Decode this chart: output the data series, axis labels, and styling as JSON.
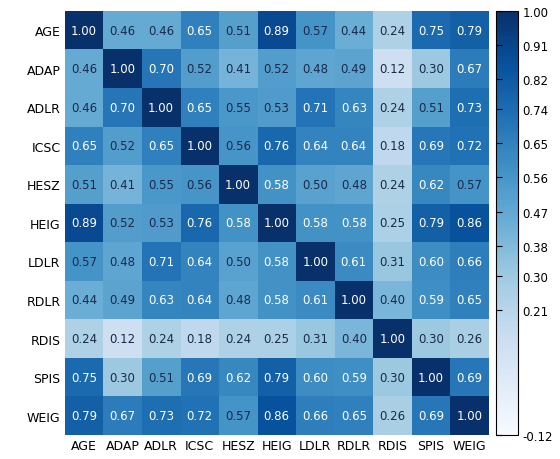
{
  "labels": [
    "AGE",
    "ADAP",
    "ADLR",
    "ICSC",
    "HESZ",
    "HEIG",
    "LDLR",
    "RDLR",
    "RDIS",
    "SPIS",
    "WEIG"
  ],
  "matrix": [
    [
      1.0,
      0.46,
      0.46,
      0.65,
      0.51,
      0.89,
      0.57,
      0.44,
      0.24,
      0.75,
      0.79
    ],
    [
      0.46,
      1.0,
      0.7,
      0.52,
      0.41,
      0.52,
      0.48,
      0.49,
      0.12,
      0.3,
      0.67
    ],
    [
      0.46,
      0.7,
      1.0,
      0.65,
      0.55,
      0.53,
      0.71,
      0.63,
      0.24,
      0.51,
      0.73
    ],
    [
      0.65,
      0.52,
      0.65,
      1.0,
      0.56,
      0.76,
      0.64,
      0.64,
      0.18,
      0.69,
      0.72
    ],
    [
      0.51,
      0.41,
      0.55,
      0.56,
      1.0,
      0.58,
      0.5,
      0.48,
      0.24,
      0.62,
      0.57
    ],
    [
      0.89,
      0.52,
      0.53,
      0.76,
      0.58,
      1.0,
      0.58,
      0.58,
      0.25,
      0.79,
      0.86
    ],
    [
      0.57,
      0.48,
      0.71,
      0.64,
      0.5,
      0.58,
      1.0,
      0.61,
      0.31,
      0.6,
      0.66
    ],
    [
      0.44,
      0.49,
      0.63,
      0.64,
      0.48,
      0.58,
      0.61,
      1.0,
      0.4,
      0.59,
      0.65
    ],
    [
      0.24,
      0.12,
      0.24,
      0.18,
      0.24,
      0.25,
      0.31,
      0.4,
      1.0,
      0.3,
      0.26
    ],
    [
      0.75,
      0.3,
      0.51,
      0.69,
      0.62,
      0.79,
      0.6,
      0.59,
      0.3,
      1.0,
      0.69
    ],
    [
      0.79,
      0.67,
      0.73,
      0.72,
      0.57,
      0.86,
      0.66,
      0.65,
      0.26,
      0.69,
      1.0
    ]
  ],
  "vmin": -0.12,
  "vmax": 1.0,
  "colorbar_ticks": [
    1.0,
    0.91,
    0.82,
    0.74,
    0.65,
    0.56,
    0.47,
    0.38,
    0.3,
    0.21,
    -0.12
  ],
  "colorbar_ticklabels": [
    "1.00",
    "0.91",
    "0.82",
    "0.74",
    "0.65",
    "0.56",
    "0.47",
    "0.38",
    "0.30",
    "0.21",
    "-0.12"
  ],
  "text_color_threshold": 0.62,
  "cmap": "Blues",
  "fontsize_annot": 8.5,
  "fontsize_labels": 9,
  "fontsize_colorbar": 8.5,
  "background_color": "#ffffff"
}
